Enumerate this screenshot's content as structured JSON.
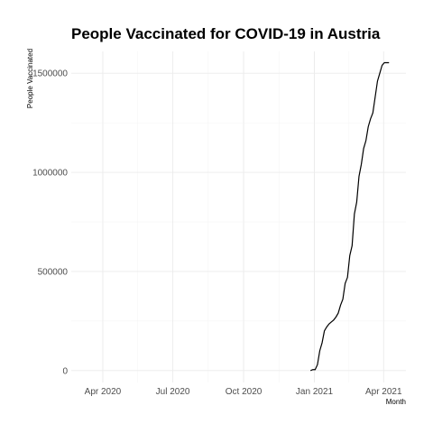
{
  "chart_data": {
    "type": "line",
    "title": "People Vaccinated for COVID-19 in Austria",
    "xlabel": "Month",
    "ylabel": "People Vaccinated",
    "x_range": [
      "2020-02-20",
      "2021-04-30"
    ],
    "x_ticks": [
      {
        "date": "2020-04-01",
        "label": "Apr 2020"
      },
      {
        "date": "2020-07-01",
        "label": "Jul 2020"
      },
      {
        "date": "2020-10-01",
        "label": "Oct 2020"
      },
      {
        "date": "2021-01-01",
        "label": "Jan 2021"
      },
      {
        "date": "2021-04-01",
        "label": "Apr 2021"
      }
    ],
    "y_ticks": [
      0,
      500000,
      1000000,
      1500000
    ],
    "y_tick_labels": [
      "0",
      "500000",
      "1000000",
      "1500000"
    ],
    "ylim": [
      -60000,
      1610000
    ],
    "grid": true,
    "line_color": "#000000",
    "series": [
      {
        "x": [
          "2020-12-27",
          "2020-12-30",
          "2021-01-02",
          "2021-01-05",
          "2021-01-08",
          "2021-01-11",
          "2021-01-14",
          "2021-01-17",
          "2021-01-20",
          "2021-01-23",
          "2021-01-26",
          "2021-01-29",
          "2021-02-01",
          "2021-02-04",
          "2021-02-07",
          "2021-02-10",
          "2021-02-13",
          "2021-02-16",
          "2021-02-19",
          "2021-02-22",
          "2021-02-25",
          "2021-02-28",
          "2021-03-03",
          "2021-03-06",
          "2021-03-09",
          "2021-03-12",
          "2021-03-15",
          "2021-03-18",
          "2021-03-21",
          "2021-03-24",
          "2021-03-27",
          "2021-03-30",
          "2021-04-02",
          "2021-04-05",
          "2021-04-08"
        ],
        "values": [
          0,
          5000,
          5000,
          30000,
          100000,
          140000,
          200000,
          220000,
          235000,
          245000,
          255000,
          270000,
          290000,
          330000,
          360000,
          440000,
          470000,
          580000,
          630000,
          790000,
          850000,
          980000,
          1040000,
          1120000,
          1160000,
          1230000,
          1270000,
          1300000,
          1380000,
          1460000,
          1500000,
          1540000,
          1553000,
          1553000,
          1553000
        ]
      }
    ]
  }
}
